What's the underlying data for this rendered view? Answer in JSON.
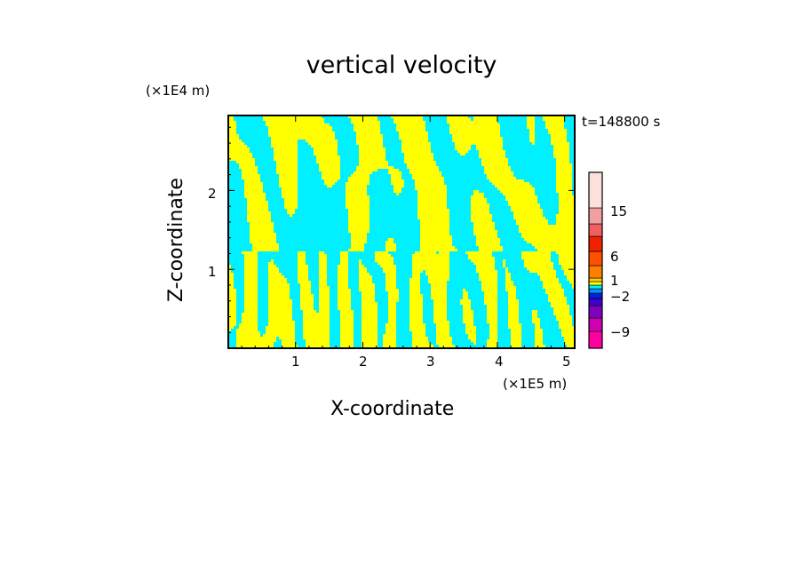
{
  "chart_data": {
    "type": "heatmap",
    "title": "vertical velocity",
    "xlabel": "X-coordinate",
    "ylabel": "Z-coordinate",
    "x_unit": "(×1E5 m)",
    "z_unit": "(×1E4 m)",
    "time_label": "t=148800 s",
    "xlim": [
      0,
      5.15
    ],
    "zlim": [
      0,
      2.95
    ],
    "x_ticks": [
      "1",
      "2",
      "3",
      "4",
      "5"
    ],
    "x_tick_values": [
      1,
      2,
      3,
      4,
      5
    ],
    "z_ticks": [
      "1",
      "2"
    ],
    "z_tick_values": [
      1,
      2
    ],
    "field_colors": {
      "positive": "#ffff00",
      "negative": "#00f0ff"
    },
    "colorbar": {
      "levels": [
        {
          "color": "#ff00a0"
        },
        {
          "color": "#d000b0"
        },
        {
          "color": "#8000c0"
        },
        {
          "color": "#4000d0"
        },
        {
          "color": "#0020e0"
        },
        {
          "color": "#0090ff"
        },
        {
          "color": "#00f0ff"
        },
        {
          "color": "#ffff00"
        },
        {
          "color": "#ffcc00"
        },
        {
          "color": "#ff8000"
        },
        {
          "color": "#ff5000"
        },
        {
          "color": "#f02000"
        },
        {
          "color": "#f06060"
        },
        {
          "color": "#f0a0a0"
        },
        {
          "color": "#fce0dc"
        }
      ],
      "labels": [
        "15",
        "6",
        "1",
        "−2",
        "−9"
      ]
    }
  }
}
